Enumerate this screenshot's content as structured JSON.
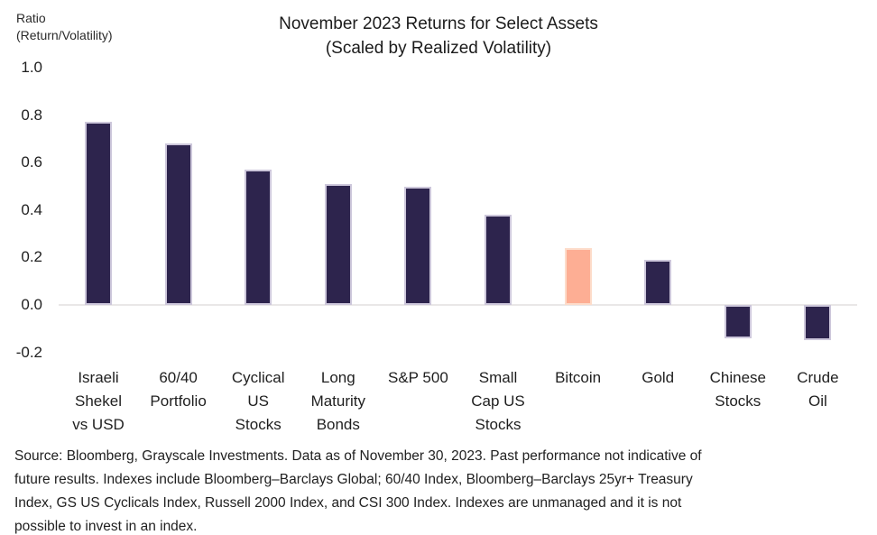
{
  "header": {
    "y_axis_title_line1": "Ratio",
    "y_axis_title_line2": "(Return/Volatility)",
    "title_line1": "November 2023 Returns for Select Assets",
    "title_line2": "(Scaled by Realized Volatility)"
  },
  "chart_data": {
    "type": "bar",
    "title": "November 2023 Returns for Select Assets (Scaled by Realized Volatility)",
    "ylabel": "Ratio (Return/Volatility)",
    "ylim": [
      -0.2,
      1.0
    ],
    "yticks": [
      1.0,
      0.8,
      0.6,
      0.4,
      0.2,
      0.0,
      -0.2
    ],
    "ytick_labels": [
      "1.0",
      "0.8",
      "0.6",
      "0.4",
      "0.2",
      "0.0",
      "-0.2"
    ],
    "grid": false,
    "legend": "none",
    "categories": [
      "Israeli Shekel vs USD",
      "60/40 Portfolio",
      "Cyclical US Stocks",
      "Long Maturity Bonds",
      "S&P 500",
      "Small Cap US Stocks",
      "Bitcoin",
      "Gold",
      "Chinese Stocks",
      "Crude Oil"
    ],
    "category_label_lines": [
      [
        "Israeli",
        "Shekel",
        "vs USD"
      ],
      [
        "60/40",
        "Portfolio"
      ],
      [
        "Cyclical",
        "US",
        "Stocks"
      ],
      [
        "Long",
        "Maturity",
        "Bonds"
      ],
      [
        "S&P 500"
      ],
      [
        "Small",
        "Cap US",
        "Stocks"
      ],
      [
        "Bitcoin"
      ],
      [
        "Gold"
      ],
      [
        "Chinese",
        "Stocks"
      ],
      [
        "Crude",
        "Oil"
      ]
    ],
    "values": [
      0.77,
      0.68,
      0.57,
      0.51,
      0.5,
      0.38,
      0.24,
      0.19,
      -0.14,
      -0.15
    ],
    "highlight_index": 6,
    "colors": {
      "bar_default": "#2d244d",
      "bar_highlight": "#fdae94",
      "axis_line": "#e9e7e7"
    }
  },
  "footer": {
    "source_lines": [
      "Source: Bloomberg, Grayscale Investments. Data as of November 30, 2023. Past performance not indicative of",
      "future results. Indexes include Bloomberg–Barclays Global; 60/40 Index, Bloomberg–Barclays 25yr+ Treasury",
      "Index, GS US Cyclicals Index, Russell 2000 Index, and CSI 300 Index. Indexes are unmanaged and it is not",
      "possible to invest in an index."
    ]
  }
}
